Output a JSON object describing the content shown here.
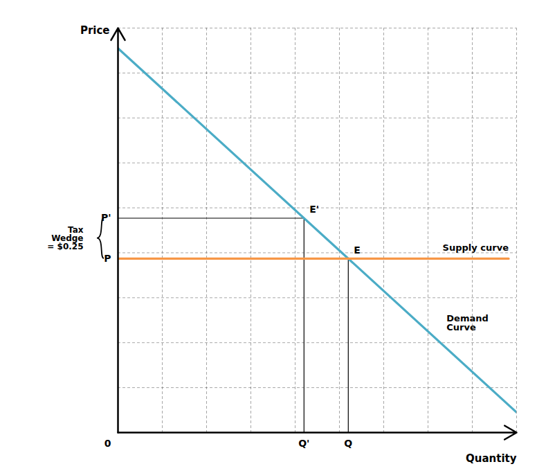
{
  "chart_data": {
    "type": "line",
    "x_label": "Quantity",
    "y_label": "Price",
    "xlim": [
      0,
      10
    ],
    "ylim": [
      0,
      10
    ],
    "xticks": [
      0,
      1.1111111111111112,
      2.2222222222222223,
      3.3333333333333335,
      4.444444444444445,
      5.555555555555555,
      6.666666666666667,
      7.777777777777778,
      8.88888888888889,
      10
    ],
    "yticks": [
      0,
      1.1111111111111112,
      2.2222222222222223,
      3.3333333333333335,
      4.444444444444445,
      5.555555555555555,
      6.666666666666667,
      7.777777777777778,
      8.88888888888889,
      10
    ],
    "grid": true,
    "tick_labels": false,
    "series": [
      {
        "name": "Demand\nCurve",
        "color": "#4BACC6",
        "x": [
          0,
          10
        ],
        "values": [
          9.5,
          0.5
        ]
      },
      {
        "name": "Supply curve",
        "color": "#F79646",
        "x": [
          0,
          9.8
        ],
        "values": [
          4.3,
          4.3
        ]
      }
    ],
    "reference_points": [
      {
        "label": "E",
        "x": 5.777777777777778,
        "y": 4.3,
        "x_label": "Q",
        "y_label": "P"
      },
      {
        "label": "E'",
        "x": 4.666666666666667,
        "y": 5.3,
        "x_label": "Q'",
        "y_label": "P'"
      }
    ],
    "origin_label": "0",
    "tax_wedge": {
      "label": "Tax\nWedge\n= $0.25",
      "from": 4.3,
      "to": 5.3
    }
  }
}
